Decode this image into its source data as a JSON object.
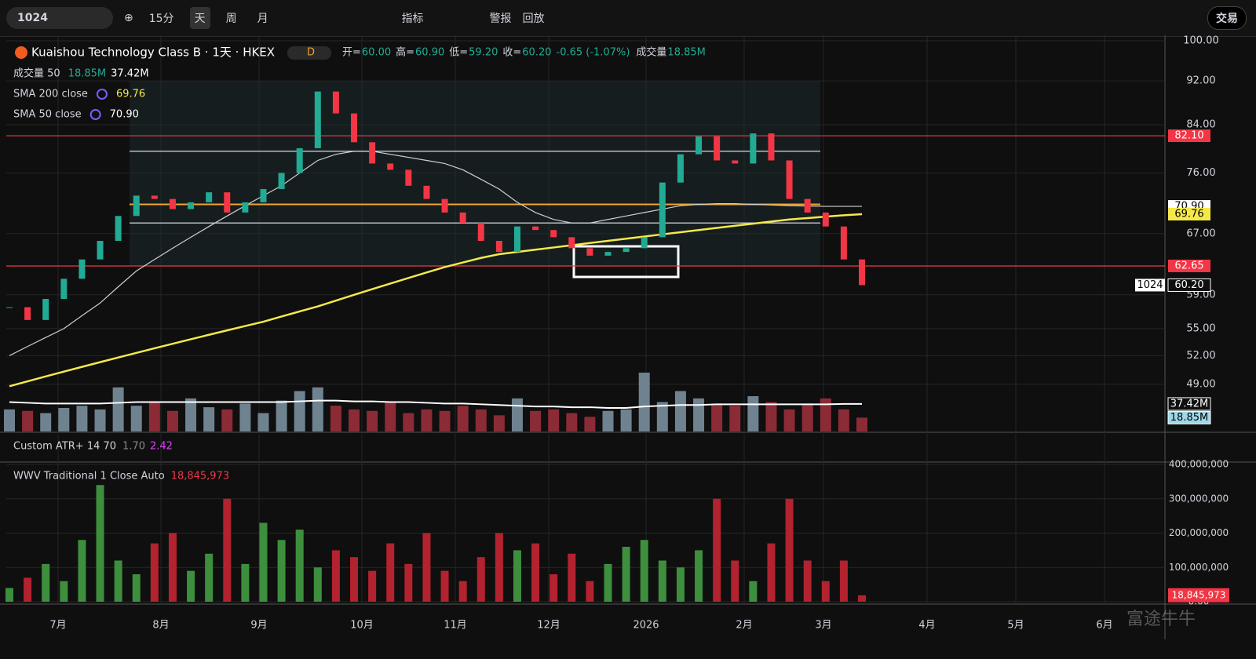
{
  "toolbar": {
    "symbol": "1024",
    "intervals": [
      "15分",
      "天",
      "周",
      "月"
    ],
    "buttons": [
      "指标",
      "警报",
      "回放"
    ],
    "trade": "交易"
  },
  "legend": {
    "title": "Kuaishou Technology Class B · 1天 · HKEX",
    "flag": "D",
    "ohlc": [
      {
        "label": "开=",
        "value": "60.00"
      },
      {
        "label": "高=",
        "value": "60.90"
      },
      {
        "label": "低=",
        "value": "59.20"
      },
      {
        "label": "收=",
        "value": "60.20"
      }
    ],
    "change": "-0.65 (-1.07%)",
    "volume_label": "成交量",
    "volume_value": "18.85M",
    "indicators": [
      {
        "name": "成交量 50",
        "values": [
          "18.85M",
          "37.42M"
        ]
      },
      {
        "name": "SMA 200 close",
        "values": [
          "69.76"
        ]
      },
      {
        "name": "SMA 50 close",
        "values": [
          "70.90"
        ]
      }
    ],
    "atr": {
      "name": "Custom ATR+ 14 70",
      "values": [
        "1.70",
        "2.42"
      ]
    },
    "wwv": {
      "name": "WWV Traditional 1 Close Auto",
      "value": "18,845,973"
    }
  },
  "chart_data": {
    "type": "candlestick",
    "log_scale": true,
    "grid": true,
    "x_labels": [
      "7月",
      "8月",
      "9月",
      "10月",
      "11月",
      "12月",
      "2026",
      "2月",
      "3月",
      "4月",
      "5月",
      "6月"
    ],
    "closes": [
      57.5,
      56.0,
      58.5,
      61.0,
      63.5,
      66.0,
      69.5,
      72.5,
      72.0,
      70.5,
      71.5,
      73.0,
      70.0,
      71.5,
      73.5,
      76.0,
      80.0,
      90.0,
      86.0,
      81.0,
      77.5,
      76.5,
      74.0,
      72.0,
      70.0,
      68.5,
      66.0,
      64.5,
      68.0,
      67.5,
      66.5,
      65.0,
      64.0,
      64.5,
      65.0,
      66.5,
      74.5,
      79.0,
      82.0,
      78.0,
      77.5,
      82.5,
      78.0,
      72.0,
      70.0,
      68.0,
      63.5,
      60.2
    ],
    "sma200": [
      48.8,
      49.3,
      49.8,
      50.3,
      50.8,
      51.3,
      51.8,
      52.3,
      52.8,
      53.3,
      53.8,
      54.3,
      54.8,
      55.3,
      55.8,
      56.4,
      57.0,
      57.6,
      58.3,
      59.0,
      59.7,
      60.4,
      61.1,
      61.8,
      62.5,
      63.1,
      63.7,
      64.2,
      64.5,
      64.8,
      65.1,
      65.4,
      65.7,
      66.0,
      66.3,
      66.6,
      66.9,
      67.2,
      67.5,
      67.8,
      68.1,
      68.4,
      68.7,
      69.0,
      69.2,
      69.4,
      69.6,
      69.76
    ],
    "sma50": [
      52,
      53,
      54,
      55,
      56.5,
      58,
      60,
      62,
      63.5,
      65,
      66.5,
      68,
      69.5,
      71,
      72.5,
      74,
      76,
      78,
      79,
      79.5,
      79.5,
      79,
      78.5,
      78,
      77.5,
      76.5,
      75,
      73.5,
      71.5,
      70,
      69,
      68.5,
      68.5,
      69,
      69.5,
      70,
      70.5,
      71,
      71.2,
      71.3,
      71.3,
      71.2,
      71.1,
      71.0,
      70.95,
      70.9,
      70.9,
      70.9
    ],
    "ylim": [
      44.42,
      101.15
    ],
    "yticks": [
      {
        "value": 100,
        "label": "100.00"
      },
      {
        "value": 92,
        "label": "92.00"
      },
      {
        "value": 84,
        "label": "84.00"
      },
      {
        "value": 76,
        "label": "76.00"
      },
      {
        "value": 67,
        "label": "67.00"
      },
      {
        "value": 59,
        "label": "59.00"
      },
      {
        "value": 55,
        "label": "55.00"
      },
      {
        "value": 52,
        "label": "52.00"
      },
      {
        "value": 49,
        "label": "49.00"
      }
    ],
    "levels": [
      {
        "value": 82.1,
        "label": "82.10",
        "color": "#f23645",
        "line": true
      },
      {
        "value": 70.9,
        "label": "70.90",
        "color": "#ffffff",
        "line": false
      },
      {
        "value": 69.76,
        "label": "69.76",
        "color": "#f5e94a",
        "line": false
      },
      {
        "value": 62.65,
        "label": "62.65",
        "color": "#f23645",
        "line": true
      },
      {
        "value": 60.2,
        "label": "60.20",
        "color": "#ffffff",
        "line": false,
        "tag": "1024"
      }
    ],
    "profile_lines": [
      {
        "value": 79.5,
        "color": "#b8bcc4"
      },
      {
        "value": 71.2,
        "color": "#f0a22e"
      },
      {
        "value": 68.5,
        "color": "#b8bcc4"
      }
    ],
    "volume": {
      "values": [
        30,
        28,
        25,
        32,
        35,
        30,
        60,
        35,
        40,
        28,
        45,
        33,
        30,
        38,
        25,
        42,
        55,
        60,
        35,
        30,
        28,
        40,
        25,
        30,
        28,
        35,
        30,
        22,
        45,
        28,
        30,
        25,
        20,
        28,
        30,
        80,
        40,
        55,
        45,
        38,
        35,
        48,
        40,
        30,
        38,
        45,
        30,
        18.85
      ],
      "avg": [
        40,
        39,
        38,
        38,
        38,
        38,
        39,
        40,
        40,
        40,
        40,
        40,
        40,
        40,
        40,
        40,
        41,
        42,
        42,
        41,
        41,
        40,
        40,
        39,
        38,
        38,
        37,
        36,
        35,
        34,
        34,
        33,
        33,
        32,
        32,
        34,
        35,
        36,
        36,
        37,
        37,
        37,
        37,
        37,
        37,
        37,
        37.42,
        37.42
      ],
      "labels": [
        {
          "value": 37.42,
          "label": "37.42M"
        },
        {
          "value": 18.85,
          "label": "18.85M"
        }
      ]
    },
    "wwv": {
      "values": [
        40000000,
        70000000,
        110000000,
        60000000,
        180000000,
        340000000,
        120000000,
        80000000,
        170000000,
        200000000,
        90000000,
        140000000,
        300000000,
        110000000,
        230000000,
        180000000,
        210000000,
        100000000,
        150000000,
        130000000,
        90000000,
        170000000,
        110000000,
        200000000,
        90000000,
        60000000,
        130000000,
        200000000,
        150000000,
        170000000,
        80000000,
        140000000,
        60000000,
        110000000,
        160000000,
        180000000,
        120000000,
        100000000,
        150000000,
        300000000,
        120000000,
        60000000,
        170000000,
        300000000,
        120000000,
        60000000,
        120000000,
        18845973
      ],
      "ylim": [
        0,
        400000000
      ],
      "yticks": [
        {
          "value": 400000000,
          "label": "400,000,000"
        },
        {
          "value": 300000000,
          "label": "300,000,000"
        },
        {
          "value": 200000000,
          "label": "200,000,000"
        },
        {
          "value": 100000000,
          "label": "100,000,000"
        },
        {
          "value": 0,
          "label": "0.00"
        }
      ],
      "last_label": "18,845,973"
    }
  },
  "watermark": "富途牛牛"
}
